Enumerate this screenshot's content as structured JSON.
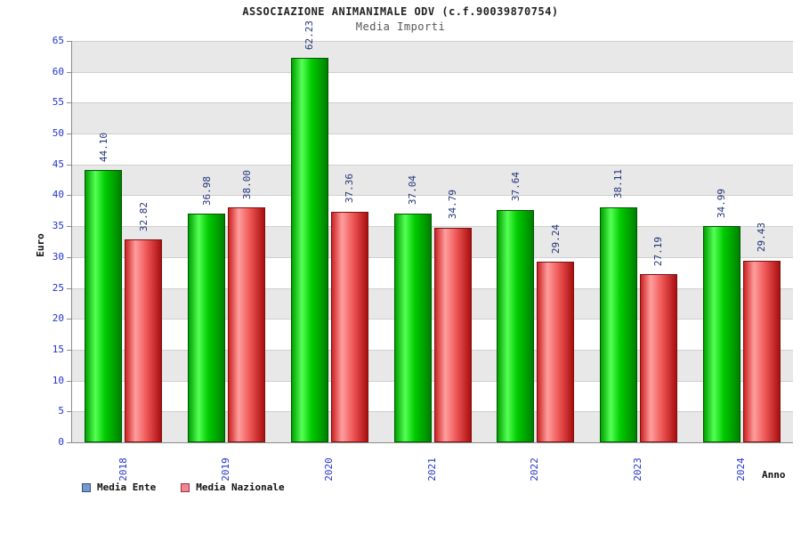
{
  "chart_data": {
    "type": "bar",
    "title": "ASSOCIAZIONE ANIMANIMALE ODV (c.f.90039870754)",
    "subtitle": "Media Importi",
    "xlabel": "Anno",
    "ylabel": "Euro",
    "ylim": [
      0,
      65
    ],
    "ytick_step": 5,
    "y_ticks": [
      "0",
      "5",
      "10",
      "15",
      "20",
      "25",
      "30",
      "35",
      "40",
      "45",
      "50",
      "55",
      "60",
      "65"
    ],
    "grid": true,
    "legend_position": "bottom-left",
    "categories": [
      "2018",
      "2019",
      "2020",
      "2021",
      "2022",
      "2023",
      "2024"
    ],
    "series": [
      {
        "name": "Media Ente",
        "legend_color": "#7799cc",
        "legend_border": "#334d80",
        "bar_style": "green",
        "values": [
          44.1,
          36.98,
          62.23,
          37.04,
          37.64,
          38.11,
          34.99
        ]
      },
      {
        "name": "Media Nazionale",
        "legend_color": "#ee8899",
        "legend_border": "#993344",
        "bar_style": "red",
        "values": [
          32.82,
          38.0,
          37.36,
          34.79,
          29.24,
          27.19,
          29.43
        ]
      }
    ],
    "colors": {
      "tick_label": "#2233cc",
      "value_label": "#223377",
      "band_gray": "#e8e8e8",
      "band_white": "#ffffff",
      "gridline": "#cfcfcf",
      "bar_green_main": "#00cc00",
      "bar_red_main": "#ee5555"
    }
  }
}
